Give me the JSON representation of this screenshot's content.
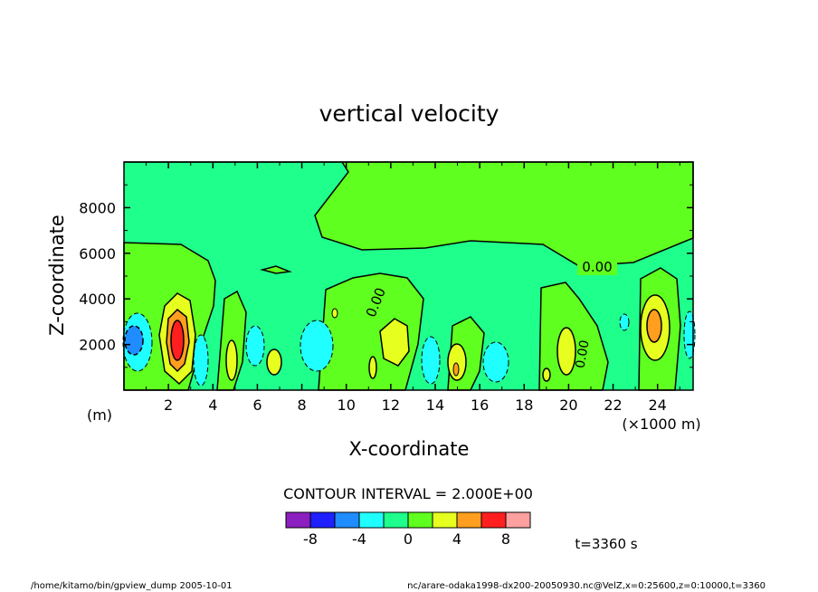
{
  "chart_data": {
    "type": "contour",
    "title": "vertical velocity",
    "xlabel": "X-coordinate",
    "ylabel": "Z-coordinate",
    "x_unit": "(×1000 m)",
    "y_unit": "(m)",
    "xlim": [
      0,
      25.6
    ],
    "ylim": [
      0,
      10000
    ],
    "x_ticks": [
      2,
      4,
      6,
      8,
      10,
      12,
      14,
      16,
      18,
      20,
      22,
      24
    ],
    "y_ticks": [
      2000,
      4000,
      6000,
      8000
    ],
    "contour_interval_text": "CONTOUR INTERVAL = 2.000E+00",
    "contour_label": "0.00",
    "colorbar": {
      "levels": [
        -10,
        -8,
        -6,
        -4,
        -2,
        0,
        2,
        4,
        6,
        8,
        10
      ],
      "tick_labels": [
        "-8",
        "-4",
        "0",
        "4",
        "8"
      ],
      "tick_values": [
        -8,
        -4,
        0,
        4,
        8
      ],
      "colors": [
        "#8c1fbf",
        "#1f1fff",
        "#1f8cff",
        "#1fffff",
        "#1fff8c",
        "#5fff1f",
        "#e6ff1f",
        "#ff9e1f",
        "#ff1f1f",
        "#ffa0a0"
      ]
    },
    "features": [
      {
        "x": 2.5,
        "z": 2300,
        "peak": 9
      },
      {
        "x": 0.5,
        "z": 2300,
        "peak": -6
      },
      {
        "x": 23.8,
        "z": 2800,
        "peak": 6
      },
      {
        "x": 12.2,
        "z": 1800,
        "peak": 3
      },
      {
        "x": 8.2,
        "z": 1900,
        "peak": -3
      },
      {
        "x": 16.6,
        "z": 1200,
        "peak": -3
      }
    ],
    "time_text": "t=3360 s"
  },
  "footer": {
    "left": "/home/kitamo/bin/gpview_dump  2005-10-01",
    "right": "nc/arare-odaka1998-dx200-20050930.nc@VelZ,x=0:25600,z=0:10000,t=3360"
  }
}
